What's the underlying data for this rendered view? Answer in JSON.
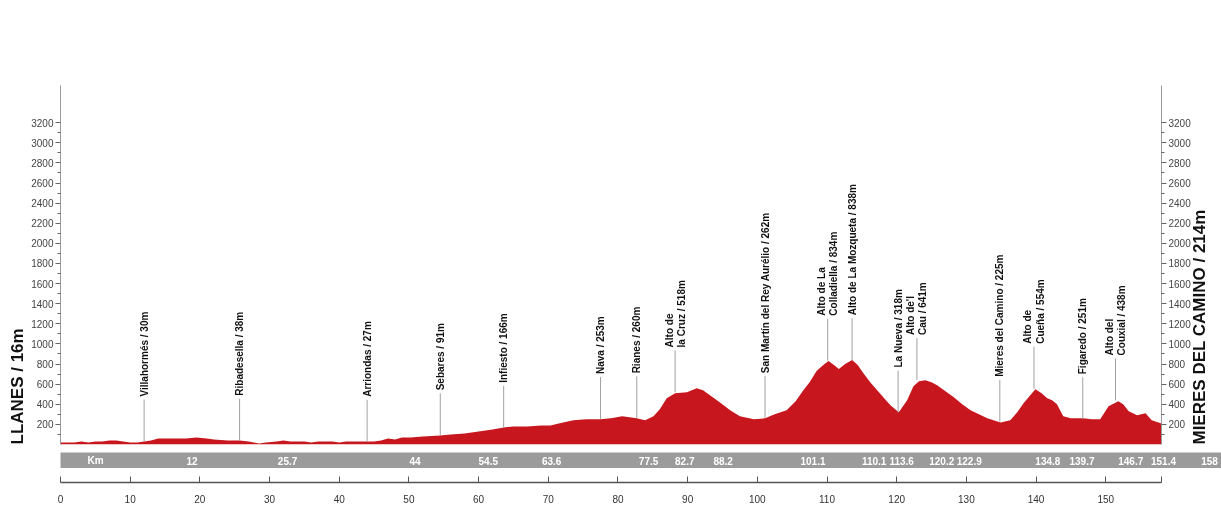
{
  "chart_data": {
    "type": "area",
    "color": "#c8161e",
    "ylabel": "LLANES / 16m",
    "y2label": "MIERES DEL CAMINO / 214m",
    "x": [
      0,
      2,
      3,
      4,
      5,
      6,
      7,
      8,
      9,
      10,
      11,
      12,
      13,
      14,
      15,
      16,
      18,
      19.5,
      21,
      22,
      24,
      25.7,
      27,
      28.5,
      29.5,
      31,
      32,
      33,
      34,
      35,
      36,
      37,
      39,
      40,
      41,
      43,
      44,
      45,
      46,
      47,
      48,
      49,
      50.2,
      52,
      54.5,
      56,
      58,
      60,
      62,
      63.6,
      65,
      67,
      69,
      70.3,
      71.5,
      73.6,
      75.5,
      77.5,
      79,
      80.6,
      82.7,
      83.9,
      85.1,
      86,
      87,
      88.2,
      89.9,
      91.3,
      92.2,
      93.2,
      94.6,
      96.1,
      97.5,
      99.5,
      101.1,
      102.5,
      104.2,
      105.5,
      106.6,
      107.5,
      108.5,
      109.3,
      110.2,
      111,
      111.7,
      112.6,
      113.6,
      114.4,
      115.2,
      116.2,
      117.2,
      118.2,
      119.1,
      120.3,
      121.5,
      122.4,
      123.2,
      124.1,
      125,
      125.8,
      127,
      128.2,
      129.4,
      130.6,
      131.8,
      133,
      134.9,
      136.3,
      137.3,
      138.2,
      139.9,
      140.8,
      141.6,
      142.3,
      143,
      143.9,
      145,
      146.8,
      148,
      149.2,
      150.4,
      151.8,
      152.5,
      153.3,
      154.5,
      155.7,
      156.6,
      158
    ],
    "values": [
      20,
      20,
      30,
      20,
      30,
      30,
      40,
      40,
      30,
      20,
      20,
      30,
      40,
      60,
      60,
      60,
      60,
      70,
      60,
      50,
      40,
      40,
      30,
      10,
      20,
      30,
      40,
      30,
      30,
      30,
      20,
      30,
      30,
      20,
      30,
      30,
      30,
      30,
      40,
      60,
      50,
      70,
      70,
      80,
      90,
      100,
      110,
      130,
      150,
      170,
      180,
      180,
      190,
      190,
      210,
      240,
      250,
      250,
      260,
      280,
      260,
      240,
      280,
      350,
      460,
      510,
      520,
      560,
      540,
      490,
      420,
      340,
      280,
      250,
      260,
      300,
      340,
      430,
      540,
      620,
      730,
      780,
      830,
      790,
      750,
      800,
      840,
      790,
      710,
      620,
      540,
      460,
      390,
      320,
      440,
      580,
      630,
      640,
      620,
      590,
      530,
      470,
      400,
      340,
      300,
      260,
      220,
      240,
      320,
      410,
      550,
      510,
      460,
      440,
      400,
      280,
      260,
      260,
      250,
      250,
      380,
      430,
      400,
      330,
      290,
      310,
      240,
      210
    ],
    "xlim": [
      0,
      158
    ],
    "xticks": [
      0,
      10,
      20,
      30,
      40,
      50,
      60,
      70,
      80,
      90,
      100,
      110,
      120,
      130,
      140,
      150,
      {
        "value": 158,
        "label": null
      }
    ],
    "x2lim": [
      0,
      158
    ],
    "x2label": "Km",
    "x2ticks": [
      12,
      25.7,
      44,
      54.5,
      63.6,
      77.5,
      82.7,
      88.2,
      101.1,
      110.1,
      113.6,
      120.2,
      122.9,
      134.8,
      139.7,
      146.7,
      151.4,
      158
    ],
    "ylim": [
      0,
      3570
    ],
    "yticks": [
      {
        "value": 100,
        "label": null
      },
      200,
      {
        "value": 300,
        "label": null
      },
      400,
      {
        "value": 500,
        "label": null
      },
      600,
      {
        "value": 700,
        "label": null
      },
      800,
      {
        "value": 900,
        "label": null
      },
      1000,
      {
        "value": 1100,
        "label": null
      },
      1200,
      {
        "value": 1300,
        "label": null
      },
      1400,
      {
        "value": 1500,
        "label": null
      },
      1600,
      {
        "value": 1700,
        "label": null
      },
      1800,
      {
        "value": 1900,
        "label": null
      },
      2000,
      {
        "value": 2100,
        "label": null
      },
      2200,
      {
        "value": 2300,
        "label": null
      },
      2400,
      {
        "value": 2500,
        "label": null
      },
      2600,
      {
        "value": 2700,
        "label": null
      },
      2800,
      {
        "value": 2900,
        "label": null
      },
      3000,
      {
        "value": 3100,
        "label": null
      },
      3200
    ],
    "y2lim": [
      0,
      3570
    ],
    "y2ticks": [
      {
        "value": 100,
        "label": null
      },
      200,
      {
        "value": 300,
        "label": null
      },
      400,
      {
        "value": 500,
        "label": null
      },
      600,
      {
        "value": 700,
        "label": null
      },
      800,
      {
        "value": 900,
        "label": null
      },
      1000,
      {
        "value": 1100,
        "label": null
      },
      1200,
      {
        "value": 1300,
        "label": null
      },
      1400,
      {
        "value": 1500,
        "label": null
      },
      1600,
      {
        "value": 1700,
        "label": null
      },
      1800,
      {
        "value": 1900,
        "label": null
      },
      2000,
      {
        "value": 2100,
        "label": null
      },
      2200,
      {
        "value": 2300,
        "label": null
      },
      2400,
      {
        "value": 2500,
        "label": null
      },
      2600,
      {
        "value": 2700,
        "label": null
      },
      2800,
      {
        "value": 2900,
        "label": null
      },
      3000,
      {
        "value": 3100,
        "label": null
      },
      3200
    ],
    "annotations": [
      {
        "text": "Villahormés / 30m",
        "x": 12,
        "y": 30
      },
      {
        "text": "Ribadesella / 38m",
        "x": 25.7,
        "y": 38
      },
      {
        "text": "Arriondas / 27m",
        "x": 44,
        "y": 27
      },
      {
        "text": "Sebares / 91m",
        "x": 54.5,
        "y": 91
      },
      {
        "text": "Infiesto / 166m",
        "x": 63.6,
        "y": 166
      },
      {
        "text": "Nava / 253m",
        "x": 77.5,
        "y": 253
      },
      {
        "text": "Rianes / 260m",
        "x": 82.7,
        "y": 260
      },
      {
        "text": "Alto de\nla Cruz / 518m",
        "x": 88.2,
        "y": 518
      },
      {
        "text": "San Martín del Rey Aurélio / 262m",
        "x": 101.1,
        "y": 262
      },
      {
        "text": "Alto de La\nColladiella / 834m",
        "x": 110.1,
        "y": 834
      },
      {
        "text": "Alto de La Mozqueta / 838m",
        "x": 113.6,
        "y": 838
      },
      {
        "text": "La Nueva / 318m",
        "x": 120.2,
        "y": 318
      },
      {
        "text": "Alto de'l\nCau / 641m",
        "x": 122.9,
        "y": 641
      },
      {
        "text": "Mieres del Camino / 225m",
        "x": 134.8,
        "y": 225
      },
      {
        "text": "Alto de\nCueña / 554m",
        "x": 139.7,
        "y": 554
      },
      {
        "text": "Figaredo / 251m",
        "x": 146.7,
        "y": 251
      },
      {
        "text": "Alto del\nCouxial / 438m",
        "x": 151.4,
        "y": 438
      }
    ]
  }
}
